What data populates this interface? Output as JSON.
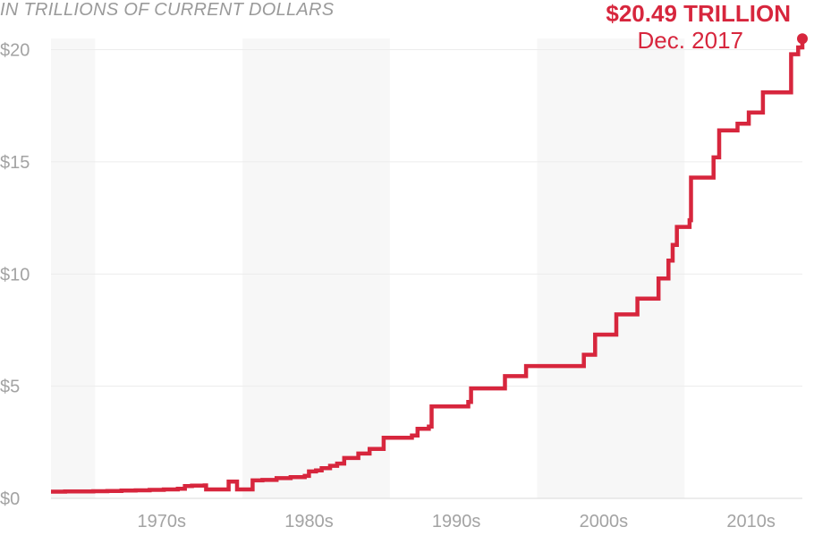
{
  "chart_data": {
    "type": "line",
    "subtitle": "IN TRILLIONS OF CURRENT DOLLARS",
    "y_tick_labels": [
      "$0",
      "$5",
      "$10",
      "$15",
      "$20"
    ],
    "y_tick_values": [
      0,
      5,
      10,
      15,
      20
    ],
    "x_tick_labels": [
      "1970s",
      "1980s",
      "1990s",
      "2000s",
      "2010s"
    ],
    "x_tick_centers": [
      1970,
      1980,
      1990,
      2000,
      2010
    ],
    "decade_bands": [
      [
        1960,
        1965
      ],
      [
        1975,
        1985
      ],
      [
        1995,
        2005
      ]
    ],
    "xlim": [
      1962,
      2013
    ],
    "ylim": [
      0,
      20.5
    ],
    "grid": true,
    "line_color": "#d7263d",
    "band_color": "#f7f7f7",
    "annotation": {
      "value": "$20.49 TRILLION",
      "date": "Dec. 2017"
    },
    "series": [
      {
        "step": true,
        "points": [
          [
            1962.0,
            0.3
          ],
          [
            1963.0,
            0.31
          ],
          [
            1965.0,
            0.32
          ],
          [
            1966.0,
            0.33
          ],
          [
            1967.0,
            0.35
          ],
          [
            1968.0,
            0.36
          ],
          [
            1969.0,
            0.38
          ],
          [
            1970.0,
            0.4
          ],
          [
            1971.0,
            0.43
          ],
          [
            1971.5,
            0.55
          ],
          [
            1972.0,
            0.57
          ],
          [
            1972.9,
            0.58
          ],
          [
            1973.0,
            0.4
          ],
          [
            1974.5,
            0.4
          ],
          [
            1974.6,
            0.75
          ],
          [
            1975.1,
            0.75
          ],
          [
            1975.2,
            0.4
          ],
          [
            1976.2,
            0.4
          ],
          [
            1976.3,
            0.8
          ],
          [
            1977.0,
            0.82
          ],
          [
            1978.0,
            0.9
          ],
          [
            1979.0,
            0.95
          ],
          [
            1980.0,
            1.0
          ],
          [
            1980.3,
            1.2
          ],
          [
            1980.8,
            1.25
          ],
          [
            1981.2,
            1.35
          ],
          [
            1981.8,
            1.45
          ],
          [
            1982.3,
            1.55
          ],
          [
            1982.8,
            1.8
          ],
          [
            1983.8,
            2.0
          ],
          [
            1984.6,
            2.2
          ],
          [
            1985.6,
            2.7
          ],
          [
            1987.6,
            2.8
          ],
          [
            1988.0,
            3.1
          ],
          [
            1988.8,
            3.2
          ],
          [
            1989.0,
            4.1
          ],
          [
            1991.6,
            4.3
          ],
          [
            1991.8,
            4.9
          ],
          [
            1994.2,
            5.45
          ],
          [
            1995.7,
            5.9
          ],
          [
            1999.8,
            6.4
          ],
          [
            2000.6,
            7.3
          ],
          [
            2002.1,
            8.2
          ],
          [
            2003.6,
            8.9
          ],
          [
            2005.1,
            9.8
          ],
          [
            2005.8,
            10.6
          ],
          [
            2006.1,
            11.3
          ],
          [
            2006.4,
            12.1
          ],
          [
            2007.3,
            12.4
          ],
          [
            2007.4,
            14.3
          ],
          [
            2009.0,
            15.2
          ],
          [
            2009.4,
            16.4
          ],
          [
            2010.7,
            16.7
          ],
          [
            2011.5,
            17.2
          ],
          [
            2012.5,
            18.1
          ],
          [
            2014.5,
            19.8
          ],
          [
            2015.0,
            20.1
          ],
          [
            2015.3,
            20.49
          ]
        ]
      }
    ]
  }
}
